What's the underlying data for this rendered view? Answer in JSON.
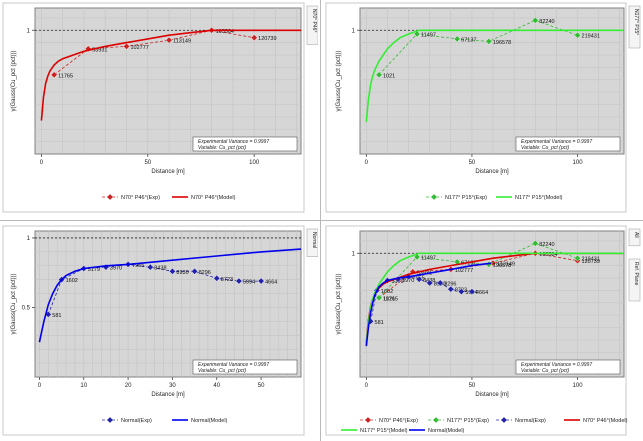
{
  "panels": [
    {
      "id": "p1",
      "tabs": [
        "N70° P46°"
      ],
      "stats": {
        "variance": "Experimental Variance = 0.9997",
        "variable": "Variable: Cu_pct (pct)"
      },
      "legend": [
        "N70° P46°(Exp)",
        "N70° P46°(Model)"
      ]
    },
    {
      "id": "p2",
      "tabs": [
        "N177° P15°"
      ],
      "stats": {
        "variance": "Experimental Variance = 0.9997",
        "variable": "Variable: Cu_pct (pct)"
      },
      "legend": [
        "N177° P15°(Exp)",
        "N177° P15°(Model)"
      ]
    },
    {
      "id": "p3",
      "tabs": [
        "Normal"
      ],
      "stats": {
        "variance": "Experimental Variance = 0.9997",
        "variable": "Variable: Cu_pct (pct)"
      },
      "legend": [
        "Normal(Exp)",
        "Normal(Model)"
      ]
    },
    {
      "id": "p4",
      "tabs": [
        "All",
        "Ref. Plane"
      ],
      "stats": {
        "variance": "Experimental Variance = 0.9997",
        "variable": "Variable: Cu_pct (pct)"
      },
      "legend": [
        "N70° P46°(Exp)",
        "N177° P15°(Exp)",
        "Normal(Exp)",
        "N70° P46°(Model)",
        "N177° P15°(Model)",
        "Normal(Model)"
      ]
    }
  ],
  "chart_data": [
    {
      "type": "line",
      "title": "",
      "xlabel": "Distance [m]",
      "ylabel": "γ(Gauss(Cu_pct (pct)))",
      "xlim": [
        -3,
        122
      ],
      "ylim": [
        0,
        1.18
      ],
      "xticks": [
        0,
        50,
        100
      ],
      "yticks": [
        {
          "v": 1,
          "label": "1"
        }
      ],
      "sill": 1,
      "series": [
        {
          "name": "N70° P46°(Exp)",
          "kind": "exp",
          "color": "#cc2222",
          "x": [
            6,
            22,
            40,
            60,
            80,
            100
          ],
          "y": [
            0.64,
            0.85,
            0.87,
            0.92,
            1.0,
            0.94
          ],
          "labels": [
            "11765",
            "53931",
            "102777",
            "113149",
            "105584",
            "120739"
          ]
        },
        {
          "name": "N70° P46°(Model)",
          "kind": "model",
          "color": "#dd0000",
          "x": [
            0,
            1,
            2,
            3,
            4,
            6,
            8,
            10,
            15,
            20,
            30,
            40,
            50,
            60,
            70,
            80,
            122
          ],
          "y": [
            0.27,
            0.46,
            0.57,
            0.63,
            0.67,
            0.72,
            0.75,
            0.77,
            0.8,
            0.83,
            0.87,
            0.9,
            0.93,
            0.96,
            0.98,
            1.0,
            1.0
          ]
        }
      ]
    },
    {
      "type": "line",
      "title": "",
      "xlabel": "Distance [m]",
      "ylabel": "γ(Gauss(Cu_pct (pct)))",
      "xlim": [
        -3,
        122
      ],
      "ylim": [
        0,
        1.18
      ],
      "xticks": [
        0,
        50,
        100
      ],
      "yticks": [
        {
          "v": 1,
          "label": "1"
        }
      ],
      "sill": 1,
      "series": [
        {
          "name": "N177° P15°(Exp)",
          "kind": "exp",
          "color": "#33bb33",
          "x": [
            6,
            24,
            43,
            58,
            80,
            100
          ],
          "y": [
            0.64,
            0.97,
            0.93,
            0.91,
            1.08,
            0.96
          ],
          "labels": [
            "1021",
            "11497",
            "67137",
            "196578",
            "82240",
            "219431"
          ]
        },
        {
          "name": "N177° P15°(Model)",
          "kind": "model",
          "color": "#33ee33",
          "x": [
            0,
            1,
            2,
            3,
            4,
            6,
            8,
            10,
            13,
            16,
            20,
            25,
            122
          ],
          "y": [
            0.26,
            0.44,
            0.56,
            0.63,
            0.68,
            0.75,
            0.8,
            0.85,
            0.9,
            0.94,
            0.97,
            1.0,
            1.0
          ]
        }
      ]
    },
    {
      "type": "line",
      "title": "",
      "xlabel": "Distance [m]",
      "ylabel": "γ(Gauss(Cu_pct (pct)))",
      "xlim": [
        -1,
        59
      ],
      "ylim": [
        0,
        1.05
      ],
      "xticks": [
        0,
        10,
        20,
        30,
        40,
        50
      ],
      "yticks": [
        {
          "v": 1,
          "label": "1"
        },
        {
          "v": 0.5,
          "label": "0.5"
        }
      ],
      "sill": 1,
      "series": [
        {
          "name": "Normal(Exp)",
          "kind": "exp",
          "color": "#2222aa",
          "x": [
            2,
            5,
            10,
            15,
            20,
            25,
            30,
            35,
            40,
            45,
            50
          ],
          "y": [
            0.45,
            0.7,
            0.78,
            0.79,
            0.81,
            0.79,
            0.76,
            0.76,
            0.71,
            0.69,
            0.69
          ],
          "labels": [
            "581",
            "1602",
            "5179",
            "3970",
            "7955",
            "8438",
            "8930",
            "8296",
            "8723",
            "5994",
            "4664"
          ]
        },
        {
          "name": "Normal(Model)",
          "kind": "model",
          "color": "#0000ee",
          "x": [
            0,
            1,
            2,
            3,
            4,
            5,
            6,
            8,
            10,
            15,
            20,
            30,
            40,
            50,
            59
          ],
          "y": [
            0.25,
            0.4,
            0.52,
            0.6,
            0.66,
            0.7,
            0.73,
            0.76,
            0.78,
            0.8,
            0.81,
            0.84,
            0.87,
            0.9,
            0.92
          ]
        }
      ]
    },
    {
      "type": "line",
      "title": "",
      "xlabel": "Distance [m]",
      "ylabel": "γ(Gauss(Cu_pct (pct)))",
      "xlim": [
        -3,
        122
      ],
      "ylim": [
        0,
        1.18
      ],
      "xticks": [
        0,
        50,
        100
      ],
      "yticks": [
        {
          "v": 1,
          "label": "1"
        }
      ],
      "sill": 1,
      "series": [
        {
          "name": "N70° P46°(Exp)",
          "kind": "exp",
          "color": "#cc2222",
          "x": [
            6,
            22,
            40,
            60,
            80,
            100
          ],
          "y": [
            0.64,
            0.85,
            0.87,
            0.92,
            1.0,
            0.94
          ],
          "labels": [
            "11765",
            "53931",
            "102777",
            "113149",
            "105584",
            "120739"
          ]
        },
        {
          "name": "N177° P15°(Exp)",
          "kind": "exp",
          "color": "#33bb33",
          "x": [
            6,
            24,
            43,
            58,
            80,
            100
          ],
          "y": [
            0.64,
            0.97,
            0.93,
            0.91,
            1.08,
            0.96
          ],
          "labels": [
            "1021",
            "11497",
            "67137",
            "196578",
            "82240",
            "219431"
          ]
        },
        {
          "name": "Normal(Exp)",
          "kind": "exp",
          "color": "#2222aa",
          "x": [
            2,
            5,
            10,
            15,
            20,
            25,
            30,
            35,
            40,
            45,
            50
          ],
          "y": [
            0.45,
            0.7,
            0.78,
            0.79,
            0.81,
            0.79,
            0.76,
            0.76,
            0.71,
            0.69,
            0.69
          ],
          "labels": [
            "581",
            "1602",
            "5179",
            "3970",
            "7955",
            "8438",
            "8930",
            "8296",
            "8723",
            "5994",
            "4664"
          ]
        },
        {
          "name": "N70° P46°(Model)",
          "kind": "model",
          "color": "#dd0000",
          "x": [
            0,
            1,
            2,
            3,
            4,
            6,
            8,
            10,
            15,
            20,
            30,
            40,
            50,
            60,
            70,
            80,
            122
          ],
          "y": [
            0.27,
            0.46,
            0.57,
            0.63,
            0.67,
            0.72,
            0.75,
            0.77,
            0.8,
            0.83,
            0.87,
            0.9,
            0.93,
            0.96,
            0.98,
            1.0,
            1.0
          ]
        },
        {
          "name": "N177° P15°(Model)",
          "kind": "model",
          "color": "#33ee33",
          "x": [
            0,
            1,
            2,
            3,
            4,
            6,
            8,
            10,
            13,
            16,
            20,
            25,
            122
          ],
          "y": [
            0.26,
            0.44,
            0.56,
            0.63,
            0.68,
            0.75,
            0.8,
            0.85,
            0.9,
            0.94,
            0.97,
            1.0,
            1.0
          ]
        },
        {
          "name": "Normal(Model)",
          "kind": "model",
          "color": "#0000ee",
          "x": [
            0,
            1,
            2,
            3,
            4,
            5,
            6,
            8,
            10,
            15,
            20,
            30,
            40,
            50,
            59
          ],
          "y": [
            0.25,
            0.4,
            0.52,
            0.6,
            0.66,
            0.7,
            0.73,
            0.76,
            0.78,
            0.8,
            0.81,
            0.84,
            0.87,
            0.9,
            0.92
          ]
        }
      ]
    }
  ]
}
